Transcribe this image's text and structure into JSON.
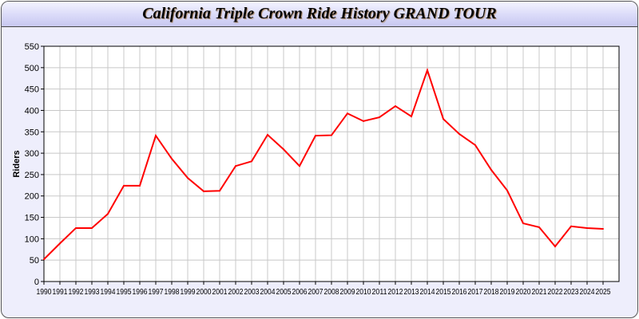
{
  "chart_data": {
    "type": "line",
    "title": "California Triple Crown Ride History GRAND TOUR",
    "xlabel": "",
    "ylabel": "Riders",
    "ylim": [
      0,
      550
    ],
    "yticks": [
      0,
      50,
      100,
      150,
      200,
      250,
      300,
      350,
      400,
      450,
      500,
      550
    ],
    "grid": true,
    "line_color": "#ff0000",
    "x": [
      1990,
      1991,
      1992,
      1993,
      1994,
      1995,
      1996,
      1997,
      1998,
      1999,
      2000,
      2001,
      2002,
      2003,
      2004,
      2005,
      2006,
      2007,
      2008,
      2009,
      2010,
      2011,
      2012,
      2013,
      2014,
      2015,
      2016,
      2017,
      2018,
      2019,
      2020,
      2021,
      2022,
      2023,
      2024,
      2025
    ],
    "values": [
      52,
      89,
      125,
      125,
      158,
      224,
      224,
      341,
      287,
      242,
      211,
      212,
      270,
      281,
      343,
      309,
      270,
      341,
      342,
      393,
      375,
      384,
      410,
      386,
      494,
      380,
      345,
      319,
      261,
      213,
      136,
      127,
      82,
      129,
      125,
      123
    ]
  }
}
